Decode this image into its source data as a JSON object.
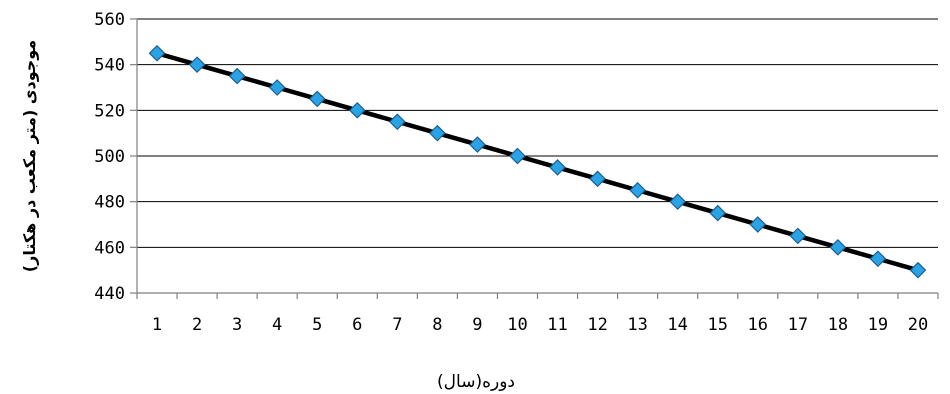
{
  "chart_data": {
    "type": "line",
    "title": "",
    "xlabel": "دوره(سال)",
    "ylabel": "موجودی (متر مکعب در هکتار)",
    "x": [
      1,
      2,
      3,
      4,
      5,
      6,
      7,
      8,
      9,
      10,
      11,
      12,
      13,
      14,
      15,
      16,
      17,
      18,
      19,
      20
    ],
    "x_tick_labels": [
      "1",
      "2",
      "3",
      "4",
      "5",
      "6",
      "7",
      "8",
      "9",
      "10",
      "11",
      "12",
      "13",
      "14",
      "15",
      "16",
      "17",
      "18",
      "19",
      "20"
    ],
    "series": [
      {
        "values": [
          545,
          540,
          535,
          530,
          525,
          520,
          515,
          510,
          505,
          500,
          495,
          490,
          485,
          480,
          475,
          470,
          465,
          460,
          455,
          450
        ]
      }
    ],
    "ylim": [
      440,
      560
    ],
    "y_ticks": [
      440,
      460,
      480,
      500,
      520,
      540,
      560
    ],
    "y_tick_labels": [
      "440",
      "460",
      "480",
      "500",
      "520",
      "540",
      "560"
    ],
    "grid": "horizontal",
    "legend": "none",
    "colors": {
      "line": "#000000",
      "marker_fill": "#29a3e6",
      "marker_stroke": "#1a5f8e",
      "grid": "#000000",
      "axis": "#808080"
    }
  }
}
